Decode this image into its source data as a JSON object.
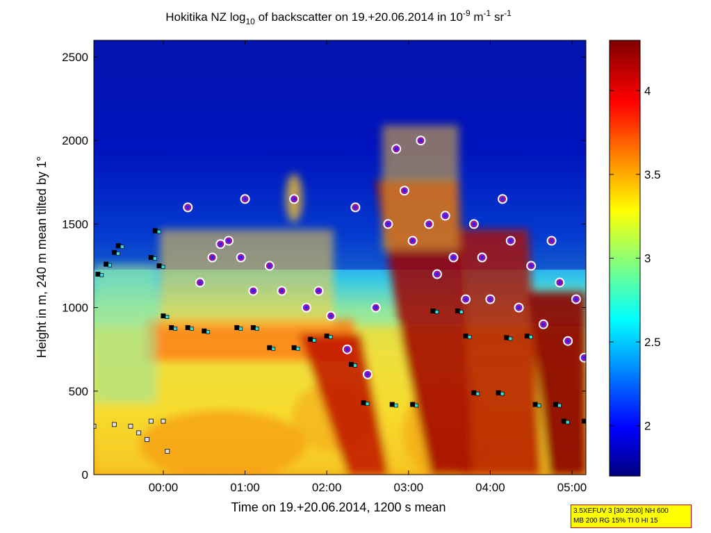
{
  "chart_data": {
    "type": "heatmap",
    "title": {
      "part1": "Hokitika NZ log",
      "sub1": "10",
      "part2": " of backscatter on 19.+20.06.2014 in 10",
      "sup1": "-9",
      "part3": " m",
      "sup2": "-1",
      "part4": " sr",
      "sup3": "-1"
    },
    "xlabel": "Time on 19.+20.06.2014, 1200 s mean",
    "ylabel": "Height in m, 240 m mean tilted by 1°",
    "x_ticks": [
      "00:00",
      "01:00",
      "02:00",
      "03:00",
      "04:00",
      "05:00"
    ],
    "x_tick_hours": [
      0,
      1,
      2,
      3,
      4,
      5
    ],
    "xlim_hours": [
      -0.85,
      5.17
    ],
    "y_ticks": [
      0,
      500,
      1000,
      1500,
      2000,
      2500
    ],
    "ylim": [
      0,
      2600
    ],
    "colorbar": {
      "ticks": [
        2,
        2.5,
        3,
        3.5,
        4
      ],
      "range": [
        1.7,
        4.3
      ],
      "colormap": "jet"
    },
    "cloud_base_layer_1": [
      {
        "t": -0.8,
        "h": 1200
      },
      {
        "t": -0.7,
        "h": 1260
      },
      {
        "t": -0.6,
        "h": 1330
      },
      {
        "t": -0.55,
        "h": 1370
      },
      {
        "t": -0.15,
        "h": 1300
      },
      {
        "t": -0.1,
        "h": 1460
      },
      {
        "t": -0.05,
        "h": 1250
      },
      {
        "t": 0.0,
        "h": 950
      },
      {
        "t": 0.1,
        "h": 880
      },
      {
        "t": 0.3,
        "h": 880
      },
      {
        "t": 0.5,
        "h": 860
      },
      {
        "t": 0.9,
        "h": 880
      },
      {
        "t": 1.1,
        "h": 880
      },
      {
        "t": 1.3,
        "h": 760
      },
      {
        "t": 1.6,
        "h": 760
      },
      {
        "t": 1.8,
        "h": 810
      },
      {
        "t": 2.0,
        "h": 830
      },
      {
        "t": 2.3,
        "h": 660
      },
      {
        "t": 2.45,
        "h": 430
      },
      {
        "t": 2.8,
        "h": 420
      },
      {
        "t": 3.05,
        "h": 420
      },
      {
        "t": 3.3,
        "h": 980
      },
      {
        "t": 3.6,
        "h": 980
      },
      {
        "t": 3.7,
        "h": 830
      },
      {
        "t": 3.8,
        "h": 490
      },
      {
        "t": 4.1,
        "h": 490
      },
      {
        "t": 4.2,
        "h": 820
      },
      {
        "t": 4.45,
        "h": 830
      },
      {
        "t": 4.55,
        "h": 420
      },
      {
        "t": 4.8,
        "h": 420
      },
      {
        "t": 4.9,
        "h": 320
      },
      {
        "t": 5.15,
        "h": 320
      }
    ],
    "cloud_base_layer_2": [
      {
        "t": -0.85,
        "h": 290
      },
      {
        "t": -0.6,
        "h": 300
      },
      {
        "t": -0.4,
        "h": 290
      },
      {
        "t": -0.3,
        "h": 250
      },
      {
        "t": -0.2,
        "h": 210
      },
      {
        "t": -0.15,
        "h": 320
      },
      {
        "t": 0.0,
        "h": 320
      },
      {
        "t": 0.05,
        "h": 140
      }
    ],
    "cloud_top_points": [
      {
        "t": 0.3,
        "h": 1600
      },
      {
        "t": 0.45,
        "h": 1150
      },
      {
        "t": 0.6,
        "h": 1300
      },
      {
        "t": 0.7,
        "h": 1380
      },
      {
        "t": 0.8,
        "h": 1400
      },
      {
        "t": 0.95,
        "h": 1300
      },
      {
        "t": 1.0,
        "h": 1650
      },
      {
        "t": 1.1,
        "h": 1100
      },
      {
        "t": 1.3,
        "h": 1250
      },
      {
        "t": 1.45,
        "h": 1100
      },
      {
        "t": 1.6,
        "h": 1650
      },
      {
        "t": 1.75,
        "h": 1000
      },
      {
        "t": 1.9,
        "h": 1100
      },
      {
        "t": 2.05,
        "h": 950
      },
      {
        "t": 2.25,
        "h": 750
      },
      {
        "t": 2.35,
        "h": 1600
      },
      {
        "t": 2.5,
        "h": 600
      },
      {
        "t": 2.6,
        "h": 1000
      },
      {
        "t": 2.75,
        "h": 1500
      },
      {
        "t": 2.85,
        "h": 1950
      },
      {
        "t": 2.95,
        "h": 1700
      },
      {
        "t": 3.05,
        "h": 1400
      },
      {
        "t": 3.15,
        "h": 2000
      },
      {
        "t": 3.25,
        "h": 1500
      },
      {
        "t": 3.35,
        "h": 1200
      },
      {
        "t": 3.45,
        "h": 1550
      },
      {
        "t": 3.55,
        "h": 1300
      },
      {
        "t": 3.7,
        "h": 1050
      },
      {
        "t": 3.8,
        "h": 1500
      },
      {
        "t": 3.9,
        "h": 1300
      },
      {
        "t": 4.0,
        "h": 1050
      },
      {
        "t": 4.15,
        "h": 1650
      },
      {
        "t": 4.25,
        "h": 1400
      },
      {
        "t": 4.35,
        "h": 1000
      },
      {
        "t": 4.5,
        "h": 1250
      },
      {
        "t": 4.65,
        "h": 900
      },
      {
        "t": 4.75,
        "h": 1400
      },
      {
        "t": 4.85,
        "h": 1150
      },
      {
        "t": 4.95,
        "h": 800
      },
      {
        "t": 5.05,
        "h": 1050
      },
      {
        "t": 5.15,
        "h": 700
      }
    ]
  },
  "info_box": {
    "line1": "3.5XEFUV 3 [30 2500] NH 600",
    "line2": "MB 200 RG 15% TI 0 HI 15"
  }
}
